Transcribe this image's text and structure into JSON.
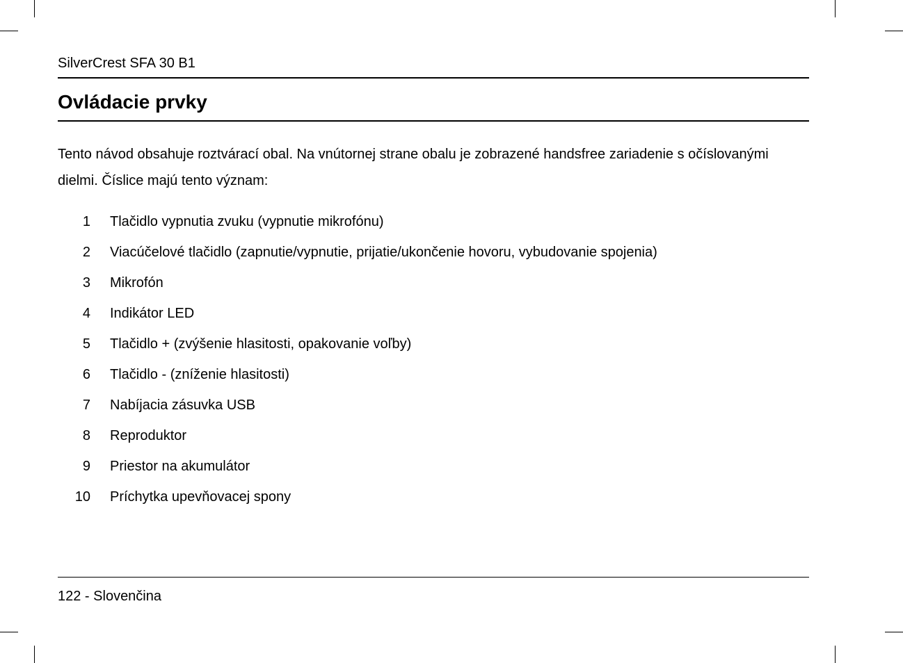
{
  "header": {
    "product": "SilverCrest SFA 30 B1"
  },
  "section": {
    "title": "Ovládacie prvky",
    "intro": "Tento návod obsahuje roztvárací obal. Na vnútornej strane obalu je zobrazené handsfree zariadenie s očíslovanými dielmi. Číslice majú tento význam:"
  },
  "items": [
    {
      "num": "1",
      "desc": "Tlačidlo vypnutia zvuku (vypnutie mikrofónu)"
    },
    {
      "num": "2",
      "desc": "Viacúčelové tlačidlo (zapnutie/vypnutie, prijatie/ukončenie hovoru, vybudovanie spojenia)"
    },
    {
      "num": "3",
      "desc": "Mikrofón"
    },
    {
      "num": "4",
      "desc": "Indikátor LED"
    },
    {
      "num": "5",
      "desc": "Tlačidlo + (zvýšenie hlasitosti, opakovanie voľby)"
    },
    {
      "num": "6",
      "desc": "Tlačidlo - (zníženie hlasitosti)"
    },
    {
      "num": "7",
      "desc": "Nabíjacia zásuvka USB"
    },
    {
      "num": "8",
      "desc": "Reproduktor"
    },
    {
      "num": "9",
      "desc": "Priestor na akumulátor"
    },
    {
      "num": "10",
      "desc": "Príchytka upevňovacej spony"
    }
  ],
  "footer": {
    "page_number": "122",
    "separator": " -  ",
    "language": "Slovenčina"
  }
}
